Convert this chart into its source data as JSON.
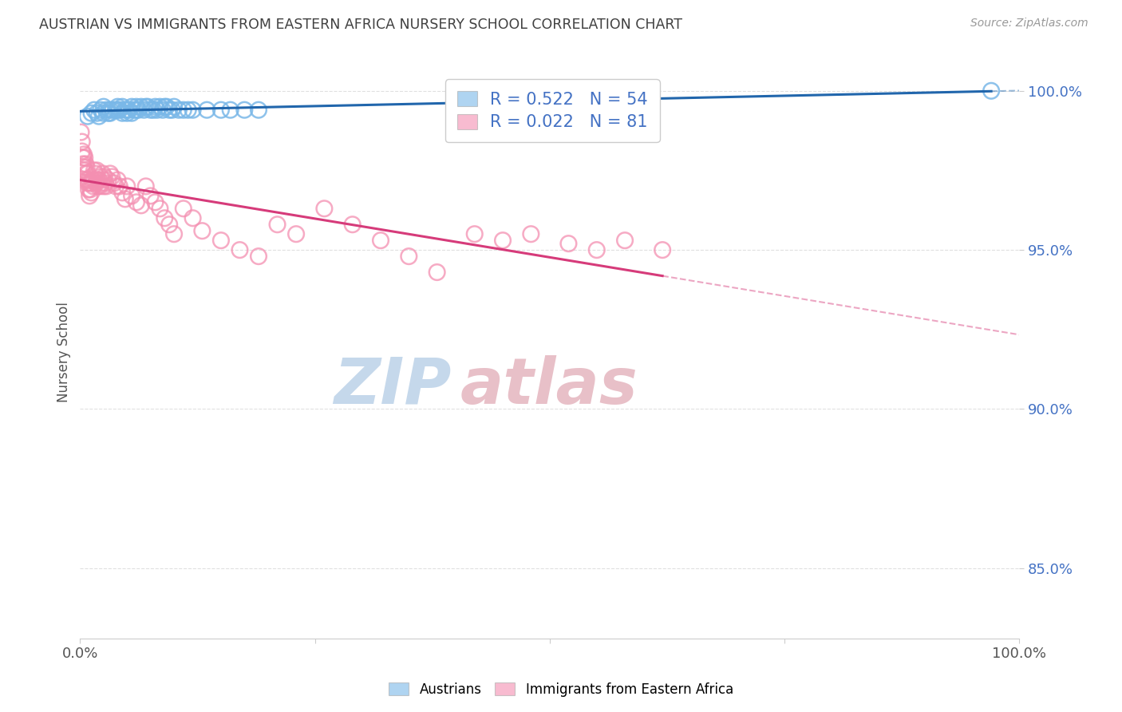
{
  "title": "AUSTRIAN VS IMMIGRANTS FROM EASTERN AFRICA NURSERY SCHOOL CORRELATION CHART",
  "source": "Source: ZipAtlas.com",
  "ylabel": "Nursery School",
  "legend_label_1": "Austrians",
  "legend_label_2": "Immigrants from Eastern Africa",
  "r1": 0.522,
  "n1": 54,
  "r2": 0.022,
  "n2": 81,
  "blue_color": "#7ab8e8",
  "pink_color": "#f48fb1",
  "blue_line_color": "#2166ac",
  "pink_line_color": "#d63b7a",
  "grid_color": "#cccccc",
  "right_label_color": "#4472c4",
  "title_color": "#404040",
  "watermark_zip_color": "#b8cfe8",
  "watermark_atlas_color": "#d4a0a0",
  "blue_scatter_x": [
    0.008,
    0.012,
    0.015,
    0.018,
    0.02,
    0.022,
    0.025,
    0.025,
    0.028,
    0.03,
    0.032,
    0.032,
    0.035,
    0.038,
    0.04,
    0.04,
    0.042,
    0.045,
    0.045,
    0.048,
    0.05,
    0.05,
    0.052,
    0.055,
    0.055,
    0.058,
    0.06,
    0.06,
    0.062,
    0.065,
    0.068,
    0.07,
    0.072,
    0.075,
    0.078,
    0.08,
    0.082,
    0.085,
    0.088,
    0.09,
    0.092,
    0.095,
    0.098,
    0.1,
    0.105,
    0.11,
    0.115,
    0.12,
    0.135,
    0.15,
    0.16,
    0.175,
    0.19,
    0.97
  ],
  "blue_scatter_y": [
    0.992,
    0.993,
    0.994,
    0.993,
    0.992,
    0.994,
    0.995,
    0.993,
    0.994,
    0.993,
    0.994,
    0.993,
    0.994,
    0.994,
    0.995,
    0.994,
    0.994,
    0.995,
    0.993,
    0.994,
    0.994,
    0.993,
    0.994,
    0.995,
    0.993,
    0.994,
    0.995,
    0.994,
    0.994,
    0.995,
    0.994,
    0.995,
    0.995,
    0.994,
    0.994,
    0.995,
    0.994,
    0.995,
    0.994,
    0.995,
    0.995,
    0.994,
    0.994,
    0.995,
    0.994,
    0.994,
    0.994,
    0.994,
    0.994,
    0.994,
    0.994,
    0.994,
    0.994,
    1.0
  ],
  "pink_scatter_x": [
    0.001,
    0.002,
    0.002,
    0.003,
    0.003,
    0.004,
    0.004,
    0.005,
    0.005,
    0.006,
    0.006,
    0.007,
    0.007,
    0.008,
    0.008,
    0.009,
    0.009,
    0.01,
    0.01,
    0.011,
    0.012,
    0.012,
    0.013,
    0.014,
    0.015,
    0.015,
    0.016,
    0.017,
    0.018,
    0.018,
    0.019,
    0.02,
    0.021,
    0.022,
    0.023,
    0.024,
    0.025,
    0.025,
    0.026,
    0.027,
    0.028,
    0.03,
    0.032,
    0.034,
    0.036,
    0.038,
    0.04,
    0.042,
    0.045,
    0.048,
    0.05,
    0.055,
    0.06,
    0.065,
    0.07,
    0.075,
    0.08,
    0.085,
    0.09,
    0.095,
    0.1,
    0.11,
    0.12,
    0.13,
    0.15,
    0.17,
    0.19,
    0.21,
    0.23,
    0.26,
    0.29,
    0.32,
    0.35,
    0.38,
    0.42,
    0.45,
    0.48,
    0.52,
    0.55,
    0.58,
    0.62
  ],
  "pink_scatter_y": [
    0.987,
    0.984,
    0.981,
    0.979,
    0.977,
    0.98,
    0.976,
    0.979,
    0.975,
    0.977,
    0.974,
    0.976,
    0.972,
    0.974,
    0.971,
    0.972,
    0.969,
    0.971,
    0.967,
    0.969,
    0.971,
    0.968,
    0.972,
    0.97,
    0.975,
    0.972,
    0.974,
    0.971,
    0.975,
    0.972,
    0.97,
    0.972,
    0.97,
    0.973,
    0.971,
    0.974,
    0.972,
    0.97,
    0.973,
    0.971,
    0.97,
    0.972,
    0.974,
    0.973,
    0.971,
    0.97,
    0.972,
    0.97,
    0.968,
    0.966,
    0.97,
    0.967,
    0.965,
    0.964,
    0.97,
    0.967,
    0.965,
    0.963,
    0.96,
    0.958,
    0.955,
    0.963,
    0.96,
    0.956,
    0.953,
    0.95,
    0.948,
    0.958,
    0.955,
    0.963,
    0.958,
    0.953,
    0.948,
    0.943,
    0.955,
    0.953,
    0.955,
    0.952,
    0.95,
    0.953,
    0.95
  ],
  "xlim": [
    0.0,
    1.0
  ],
  "ylim": [
    0.828,
    1.008
  ],
  "yticks": [
    0.85,
    0.9,
    0.95,
    1.0
  ],
  "ytick_labels": [
    "85.0%",
    "90.0%",
    "95.0%",
    "100.0%"
  ],
  "xtick_labels_left": "0.0%",
  "xtick_labels_right": "100.0%"
}
